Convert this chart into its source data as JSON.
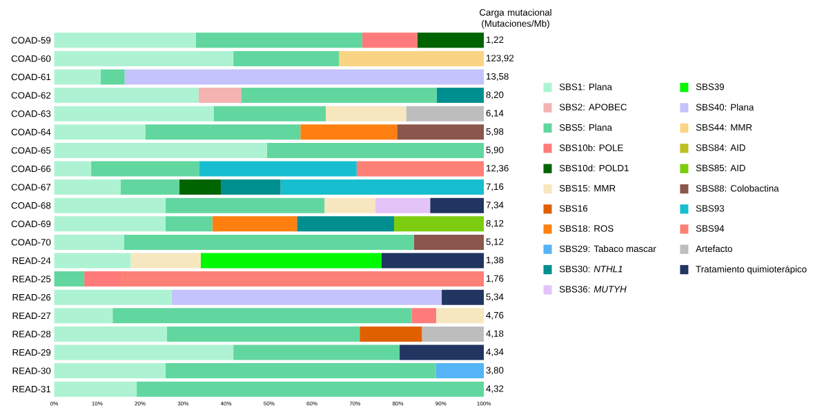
{
  "chart_data": {
    "type": "bar",
    "orientation": "horizontal",
    "stacked": true,
    "legend": "right",
    "categories": [
      "COAD-59",
      "COAD-60",
      "COAD-61",
      "COAD-62",
      "COAD-63",
      "COAD-64",
      "COAD-65",
      "COAD-66",
      "COAD-67",
      "COAD-68",
      "COAD-69",
      "COAD-70",
      "READ-24",
      "READ-25",
      "READ-26",
      "READ-27",
      "READ-28",
      "READ-29",
      "READ-30",
      "READ-31"
    ],
    "xlim": [
      0,
      100
    ],
    "xticks": [
      {
        "value": 0,
        "label": "0%"
      },
      {
        "value": 10,
        "label": "10%"
      },
      {
        "value": 20,
        "label": "20%"
      },
      {
        "value": 30,
        "label": "30%"
      },
      {
        "value": 40,
        "label": "40%"
      },
      {
        "value": 50,
        "label": "50%"
      },
      {
        "value": 60,
        "label": "60%"
      },
      {
        "value": 70,
        "label": "70%"
      },
      {
        "value": 80,
        "label": "80%"
      },
      {
        "value": 90,
        "label": "90%"
      },
      {
        "value": 100,
        "label": "100%"
      }
    ],
    "series": [
      {
        "name": "SBS1: Plana",
        "color": "#adf3d3",
        "values": [
          33,
          41.7,
          10.8,
          33.6,
          37.1,
          21.2,
          49.5,
          8.6,
          15.5,
          25.9,
          25.9,
          16.3,
          17.8,
          0,
          27.3,
          13.6,
          26.2,
          41.7,
          25.9,
          19.2
        ]
      },
      {
        "name": "SBS2: APOBEC",
        "color": "#f4b3b0",
        "values": [
          0,
          0,
          0,
          9.9,
          0,
          0,
          0,
          0,
          0,
          0,
          0,
          0,
          0,
          0,
          0,
          0,
          0,
          0,
          0,
          0
        ]
      },
      {
        "name": "SBS5: Plana",
        "color": "#61d79f",
        "values": [
          38.7,
          24.6,
          5.6,
          45.5,
          26.1,
          36.1,
          50.5,
          25.1,
          13.6,
          37,
          10.9,
          67.4,
          0,
          7,
          0,
          69.6,
          44.9,
          38.7,
          62.9,
          80.8
        ]
      },
      {
        "name": "SBS10b: POLE",
        "color": "#ff7b7b",
        "values": [
          12.8,
          0,
          0,
          0,
          0,
          0,
          0,
          0,
          0,
          0,
          0,
          0,
          0,
          8.8,
          0,
          5.7,
          0,
          0,
          0,
          0
        ]
      },
      {
        "name": "SBS10d: POLD1",
        "color": "#006400",
        "values": [
          15.5,
          0,
          0,
          0,
          0,
          0,
          0,
          0,
          9.7,
          0,
          0,
          0,
          0,
          0,
          0,
          0,
          0,
          0,
          0,
          0
        ]
      },
      {
        "name": "SBS15: MMR",
        "color": "#f7e7bf",
        "values": [
          0,
          0,
          0,
          0,
          18.7,
          0,
          0,
          0,
          0,
          11.8,
          0,
          0,
          16.3,
          0,
          0,
          11.1,
          0,
          0,
          0,
          0
        ]
      },
      {
        "name": "SBS16",
        "color": "#e06000",
        "values": [
          0,
          0,
          0,
          0,
          0,
          0,
          0,
          0,
          0,
          0,
          0,
          0,
          0,
          0,
          0,
          0,
          14.5,
          0,
          0,
          0
        ]
      },
      {
        "name": "SBS18: ROS",
        "color": "#ff8010",
        "values": [
          0,
          0,
          0,
          0,
          0,
          22.5,
          0,
          0,
          0,
          0,
          19.7,
          0,
          0,
          0,
          0,
          0,
          0,
          0,
          0,
          0
        ]
      },
      {
        "name": "SBS29: Tabaco mascar",
        "color": "#55b4f6",
        "values": [
          0,
          0,
          0,
          0,
          0,
          0,
          0,
          0,
          0,
          0,
          0,
          0,
          0,
          0,
          0,
          0,
          0,
          0,
          11.2,
          0
        ]
      },
      {
        "name": "SBS30: *NTHL1*",
        "color": "#008f8f",
        "values": [
          0,
          0,
          0,
          11,
          0,
          0,
          0,
          0,
          13.9,
          0,
          22.6,
          0,
          0,
          0,
          0,
          0,
          0,
          0,
          0,
          0
        ]
      },
      {
        "name": "SBS36: *MUTYH*",
        "color": "#e3c3f8",
        "values": [
          0,
          0,
          0,
          0,
          0,
          0,
          0,
          0,
          0,
          12.8,
          0,
          0,
          0,
          0,
          0,
          0,
          0,
          0,
          0,
          0
        ]
      },
      {
        "name": "SBS39",
        "color": "#00f900",
        "values": [
          0,
          0,
          0,
          0,
          0,
          0,
          0,
          0,
          0,
          0,
          0,
          0,
          42.1,
          0,
          0,
          0,
          0,
          0,
          0,
          0
        ]
      },
      {
        "name": "SBS40: Plana",
        "color": "#c4c3fb",
        "values": [
          0,
          0,
          83.6,
          0,
          0,
          0,
          0,
          0,
          0,
          0,
          0,
          0,
          0,
          0,
          62.9,
          0,
          0,
          0,
          0,
          0
        ]
      },
      {
        "name": "SBS44: MMR",
        "color": "#fad485",
        "values": [
          0,
          33.7,
          0,
          0,
          0,
          0,
          0,
          0,
          0,
          0,
          0,
          0,
          0,
          0,
          0,
          0,
          0,
          0,
          0,
          0
        ]
      },
      {
        "name": "SBS84: AID",
        "color": "#bcbf20",
        "values": [
          0,
          0,
          0,
          0,
          0,
          0,
          0,
          0,
          0,
          0,
          0,
          0,
          0,
          0,
          0,
          0,
          0,
          0,
          0,
          0
        ]
      },
      {
        "name": "SBS85: AID",
        "color": "#7ccc10",
        "values": [
          0,
          0,
          0,
          0,
          0,
          0,
          0,
          0,
          0,
          0,
          20.9,
          0,
          0,
          0,
          0,
          0,
          0,
          0,
          0,
          0
        ]
      },
      {
        "name": "SBS88: Colobactina",
        "color": "#8b564c",
        "values": [
          0,
          0,
          0,
          0,
          0,
          20.2,
          0,
          0,
          0,
          0,
          0,
          16.3,
          0,
          0,
          0,
          0,
          0,
          0,
          0,
          0
        ]
      },
      {
        "name": "SBS93",
        "color": "#17becf",
        "values": [
          0,
          0,
          0,
          0,
          0,
          0,
          0,
          36.7,
          47.3,
          0,
          0,
          0,
          0,
          0,
          0,
          0,
          0,
          0,
          0,
          0
        ]
      },
      {
        "name": "SBS94",
        "color": "#fd8076",
        "values": [
          0,
          0,
          0,
          0,
          0,
          0,
          0,
          29.6,
          0,
          0,
          0,
          0,
          0,
          84.2,
          0,
          0,
          0,
          0,
          0,
          0
        ]
      },
      {
        "name": "Artefacto",
        "color": "#bdbdbd",
        "values": [
          0,
          0,
          0,
          0,
          18.1,
          0,
          0,
          0,
          0,
          0,
          0,
          0,
          0,
          0,
          0,
          0,
          14.4,
          0,
          0,
          0
        ]
      },
      {
        "name": "Tratamiento quimioterápico",
        "color": "#203560",
        "values": [
          0,
          0,
          0,
          0,
          0,
          0,
          0,
          0,
          0,
          12.5,
          0,
          0,
          23.8,
          0,
          9.8,
          0,
          0,
          19.6,
          0,
          0
        ]
      }
    ],
    "annotations": [
      "Carga mutacional (Mutaciones/Mb)",
      "1,22",
      "123,92",
      "13,58",
      "8,20",
      "6,14",
      "5,98",
      "5,90",
      "12,36",
      "7,16",
      "7,34",
      "8,12",
      "5,12",
      "1,38",
      "1,76",
      "5,34",
      "4,76",
      "4,18",
      "4,34",
      "3,80",
      "4,32"
    ]
  }
}
